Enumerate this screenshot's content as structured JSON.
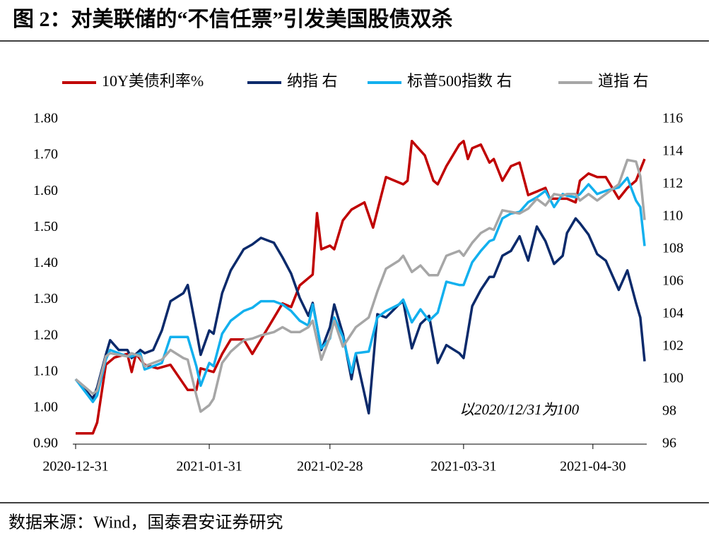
{
  "chart_data": {
    "type": "line",
    "title": "图 2：对美联储的“不信任票”引发美国股债双杀",
    "source": "数据来源：Wind，国泰君安证券研究",
    "annotation": "以2020/12/31为100",
    "annotation_color": "#c00000",
    "xlim": [
      "2020-12-31",
      "2021-05-12"
    ],
    "xticks": [
      "2020-12-31",
      "2021-01-31",
      "2021-02-28",
      "2021-03-31",
      "2021-04-30"
    ],
    "ylim": [
      0.9,
      1.8
    ],
    "yticks": [
      {
        "value": 0.9,
        "label": "0.90"
      },
      {
        "value": 1.0,
        "label": "1.00"
      },
      {
        "value": 1.1,
        "label": "1.10"
      },
      {
        "value": 1.2,
        "label": "1.20"
      },
      {
        "value": 1.3,
        "label": "1.30"
      },
      {
        "value": 1.4,
        "label": "1.40"
      },
      {
        "value": 1.5,
        "label": "1.50"
      },
      {
        "value": 1.6,
        "label": "1.60"
      },
      {
        "value": 1.7,
        "label": "1.70"
      },
      {
        "value": 1.8,
        "label": "1.80"
      }
    ],
    "y2lim": [
      96,
      116
    ],
    "y2ticks": [
      96,
      98,
      100,
      102,
      104,
      106,
      108,
      110,
      112,
      114,
      116
    ],
    "legend": "top",
    "x": [
      "2020-12-31",
      "2021-01-04",
      "2021-01-05",
      "2021-01-07",
      "2021-01-08",
      "2021-01-10",
      "2021-01-12",
      "2021-01-13",
      "2021-01-15",
      "2021-01-16",
      "2021-01-18",
      "2021-01-20",
      "2021-01-22",
      "2021-01-25",
      "2021-01-26",
      "2021-01-28",
      "2021-01-29",
      "2021-01-31",
      "2021-02-01",
      "2021-02-03",
      "2021-02-05",
      "2021-02-08",
      "2021-02-10",
      "2021-02-12",
      "2021-02-15",
      "2021-02-17",
      "2021-02-19",
      "2021-02-21",
      "2021-02-23",
      "2021-02-24",
      "2021-02-26",
      "2021-02-28",
      "2021-03-01",
      "2021-03-03",
      "2021-03-05",
      "2021-03-06",
      "2021-03-09",
      "2021-03-11",
      "2021-03-13",
      "2021-03-16",
      "2021-03-17",
      "2021-03-19",
      "2021-03-21",
      "2021-03-23",
      "2021-03-25",
      "2021-03-27",
      "2021-03-30",
      "2021-03-31",
      "2021-04-02",
      "2021-04-04",
      "2021-04-06",
      "2021-04-07",
      "2021-04-09",
      "2021-04-11",
      "2021-04-13",
      "2021-04-15",
      "2021-04-17",
      "2021-04-19",
      "2021-04-21",
      "2021-04-23",
      "2021-04-24",
      "2021-04-26",
      "2021-04-27",
      "2021-04-29",
      "2021-05-01",
      "2021-05-03",
      "2021-05-06",
      "2021-05-08",
      "2021-05-10",
      "2021-05-11",
      "2021-05-12"
    ],
    "series": [
      {
        "name": "10Y美债利率%",
        "color": "#c00000",
        "x": [
          "2020-12-31",
          "2021-01-04",
          "2021-01-05",
          "2021-01-07",
          "2021-01-09",
          "2021-01-12",
          "2021-01-13",
          "2021-01-14",
          "2021-01-16",
          "2021-01-19",
          "2021-01-22",
          "2021-01-26",
          "2021-01-28",
          "2021-01-29",
          "2021-02-01",
          "2021-02-03",
          "2021-02-05",
          "2021-02-08",
          "2021-02-10",
          "2021-02-12",
          "2021-02-17",
          "2021-02-19",
          "2021-02-21",
          "2021-02-24",
          "2021-02-25",
          "2021-02-26",
          "2021-02-28",
          "2021-03-01",
          "2021-03-03",
          "2021-03-05",
          "2021-03-08",
          "2021-03-10",
          "2021-03-13",
          "2021-03-17",
          "2021-03-18",
          "2021-03-19",
          "2021-03-22",
          "2021-03-24",
          "2021-03-25",
          "2021-03-27",
          "2021-03-30",
          "2021-03-31",
          "2021-04-01",
          "2021-04-02",
          "2021-04-04",
          "2021-04-06",
          "2021-04-07",
          "2021-04-09",
          "2021-04-11",
          "2021-04-13",
          "2021-04-15",
          "2021-04-17",
          "2021-04-19",
          "2021-04-20",
          "2021-04-22",
          "2021-04-24",
          "2021-04-26",
          "2021-04-27",
          "2021-04-29",
          "2021-05-01",
          "2021-05-03",
          "2021-05-06",
          "2021-05-08",
          "2021-05-10",
          "2021-05-12"
        ],
        "values": [
          0.93,
          0.93,
          0.96,
          1.12,
          1.14,
          1.15,
          1.1,
          1.15,
          1.12,
          1.11,
          1.12,
          1.05,
          1.05,
          1.11,
          1.1,
          1.15,
          1.19,
          1.19,
          1.15,
          1.19,
          1.29,
          1.28,
          1.34,
          1.37,
          1.54,
          1.44,
          1.45,
          1.44,
          1.52,
          1.55,
          1.57,
          1.5,
          1.64,
          1.62,
          1.63,
          1.74,
          1.7,
          1.63,
          1.62,
          1.67,
          1.73,
          1.74,
          1.69,
          1.72,
          1.73,
          1.68,
          1.69,
          1.63,
          1.67,
          1.68,
          1.59,
          1.6,
          1.61,
          1.58,
          1.58,
          1.58,
          1.57,
          1.63,
          1.65,
          1.64,
          1.64,
          1.58,
          1.61,
          1.63,
          1.69
        ]
      },
      {
        "name": "纳指 右",
        "color": "#0b2a6b",
        "axis": "y2",
        "values": [
          100.0,
          98.8,
          99.5,
          101.5,
          102.4,
          101.8,
          101.8,
          101.3,
          101.8,
          101.6,
          101.8,
          103.0,
          104.8,
          105.3,
          105.8,
          103.0,
          101.5,
          103.0,
          102.8,
          105.3,
          106.7,
          108.0,
          108.3,
          108.7,
          108.4,
          107.5,
          106.5,
          105.0,
          103.9,
          104.7,
          101.8,
          103.2,
          104.6,
          102.8,
          100.0,
          101.5,
          97.9,
          104.0,
          103.8,
          104.6,
          104.8,
          101.9,
          103.4,
          103.9,
          101.0,
          102.1,
          101.6,
          101.3,
          104.5,
          105.5,
          106.3,
          106.3,
          107.6,
          107.9,
          108.8,
          107.3,
          109.4,
          108.5,
          107.1,
          107.6,
          109.0,
          109.9,
          109.6,
          108.9,
          107.7,
          107.3,
          105.5,
          106.7,
          104.7,
          103.8,
          101.1
        ]
      },
      {
        "name": "标普500指数 右",
        "color": "#12b0ee",
        "axis": "y2",
        "values": [
          100.0,
          98.6,
          99.0,
          101.2,
          101.8,
          101.6,
          101.4,
          101.4,
          101.6,
          100.6,
          100.8,
          101.0,
          102.6,
          102.6,
          102.6,
          100.8,
          99.6,
          101.0,
          100.8,
          102.8,
          103.6,
          104.2,
          104.4,
          104.8,
          104.8,
          104.6,
          104.2,
          103.6,
          103.3,
          104.6,
          101.9,
          102.5,
          103.8,
          102.6,
          100.4,
          101.6,
          101.7,
          103.8,
          104.2,
          104.6,
          104.9,
          103.5,
          104.3,
          103.6,
          104.1,
          106.0,
          105.8,
          105.8,
          107.2,
          107.9,
          108.5,
          108.6,
          109.9,
          110.2,
          110.3,
          110.9,
          111.2,
          111.6,
          110.6,
          111.4,
          111.3,
          111.2,
          111.4,
          112.0,
          111.4,
          111.6,
          111.8,
          112.4,
          111.0,
          110.6,
          108.2
        ]
      },
      {
        "name": "道指 右",
        "color": "#a6a6a6",
        "axis": "y2",
        "values": [
          100.0,
          99.1,
          99.3,
          101.4,
          101.6,
          101.5,
          101.4,
          101.6,
          101.4,
          100.8,
          101.0,
          101.2,
          101.8,
          101.3,
          101.2,
          99.0,
          98.0,
          98.4,
          98.8,
          101.0,
          101.7,
          102.4,
          102.5,
          102.7,
          102.9,
          103.2,
          102.9,
          102.9,
          103.2,
          103.6,
          101.2,
          102.6,
          103.6,
          102.0,
          102.8,
          103.2,
          103.8,
          105.4,
          106.8,
          107.3,
          107.6,
          106.6,
          107.0,
          106.4,
          106.4,
          107.6,
          107.9,
          107.6,
          108.4,
          109.0,
          109.3,
          109.2,
          110.4,
          110.3,
          110.2,
          110.5,
          111.1,
          110.7,
          111.4,
          111.3,
          111.4,
          111.4,
          111.0,
          111.4,
          111.0,
          111.4,
          112.0,
          113.5,
          113.4,
          112.5,
          109.8
        ]
      }
    ]
  }
}
